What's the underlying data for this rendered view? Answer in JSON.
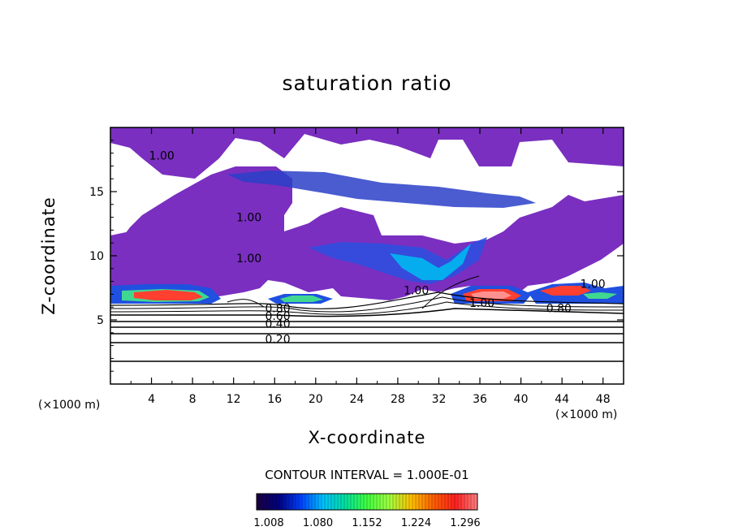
{
  "chart_data": {
    "type": "heatmap",
    "title": "saturation ratio",
    "xlabel": "X-coordinate",
    "ylabel": "Z-coordinate",
    "x_unit": "(×1000 m)",
    "xlim": [
      0,
      50
    ],
    "ylim": [
      0,
      20
    ],
    "x_ticks": [
      4,
      8,
      12,
      16,
      20,
      24,
      28,
      32,
      36,
      40,
      44,
      48
    ],
    "y_ticks": [
      5,
      10,
      15
    ],
    "contour_interval_text": "CONTOUR INTERVAL = 1.000E-01",
    "colorbar": {
      "min": 1.008,
      "max": 1.296,
      "tick_values": [
        "1.008",
        "1.080",
        "1.152",
        "1.224",
        "1.296"
      ],
      "colors": [
        "#1a0040",
        "#000080",
        "#0040ff",
        "#00c0ff",
        "#00e0a0",
        "#40ff40",
        "#a0ff40",
        "#ffc000",
        "#ff6000",
        "#ff2020",
        "#ff8080"
      ]
    },
    "contour_labels": [
      {
        "text": "1.00",
        "x": 5,
        "z": 17.5
      },
      {
        "text": "1.00",
        "x": 13.5,
        "z": 12.7
      },
      {
        "text": "1.00",
        "x": 13.5,
        "z": 9.5
      },
      {
        "text": "1.00",
        "x": 29.8,
        "z": 7.0
      },
      {
        "text": "1.00",
        "x": 36.2,
        "z": 6.0
      },
      {
        "text": "1.00",
        "x": 47.0,
        "z": 7.5
      },
      {
        "text": "0.80",
        "x": 16.3,
        "z": 5.6
      },
      {
        "text": "0.80",
        "x": 43.7,
        "z": 5.6
      },
      {
        "text": "0.60",
        "x": 16.3,
        "z": 5.0
      },
      {
        "text": "0.40",
        "x": 16.3,
        "z": 4.4
      },
      {
        "text": "0.20",
        "x": 16.3,
        "z": 3.2
      }
    ]
  }
}
